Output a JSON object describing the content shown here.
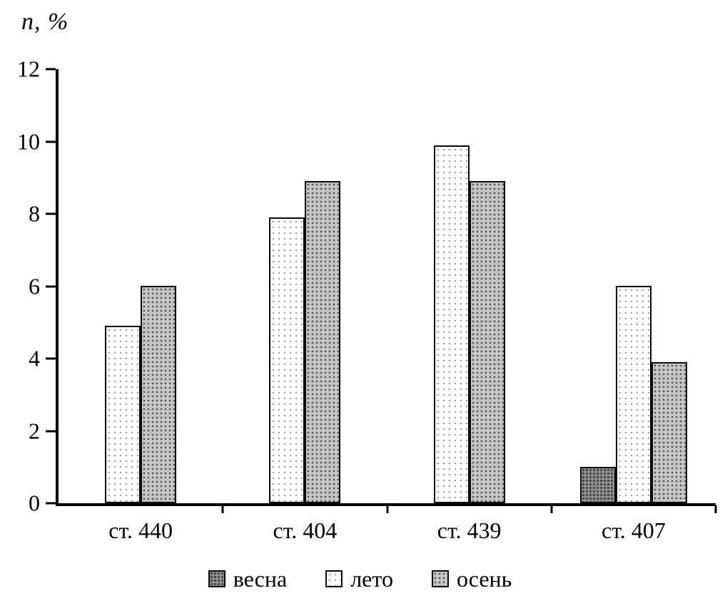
{
  "chart_data": {
    "type": "bar",
    "title": "n, %",
    "ylabel": "n, %",
    "xlabel": "",
    "categories": [
      "ст. 440",
      "ст. 404",
      "ст. 439",
      "ст. 407"
    ],
    "series": [
      {
        "name": "весна",
        "key": "vesna",
        "values": [
          0,
          0,
          0,
          1.0
        ],
        "fill": "#8e8e8e",
        "pattern": "dense-dark-dots"
      },
      {
        "name": "лето",
        "key": "leto",
        "values": [
          4.9,
          7.9,
          9.9,
          6.0
        ],
        "fill": "#ffffff",
        "pattern": "sparse-light-dots"
      },
      {
        "name": "осень",
        "key": "osen",
        "values": [
          6.0,
          8.9,
          8.9,
          3.9
        ],
        "fill": "#c6c6c6",
        "pattern": "medium-dots"
      }
    ],
    "ylim": [
      0,
      12
    ],
    "yticks": [
      0,
      2,
      4,
      6,
      8,
      10,
      12
    ],
    "grid": false,
    "legend_position": "bottom",
    "axis_color": "#000000",
    "bar_outline_color": "#0a0a0a"
  }
}
